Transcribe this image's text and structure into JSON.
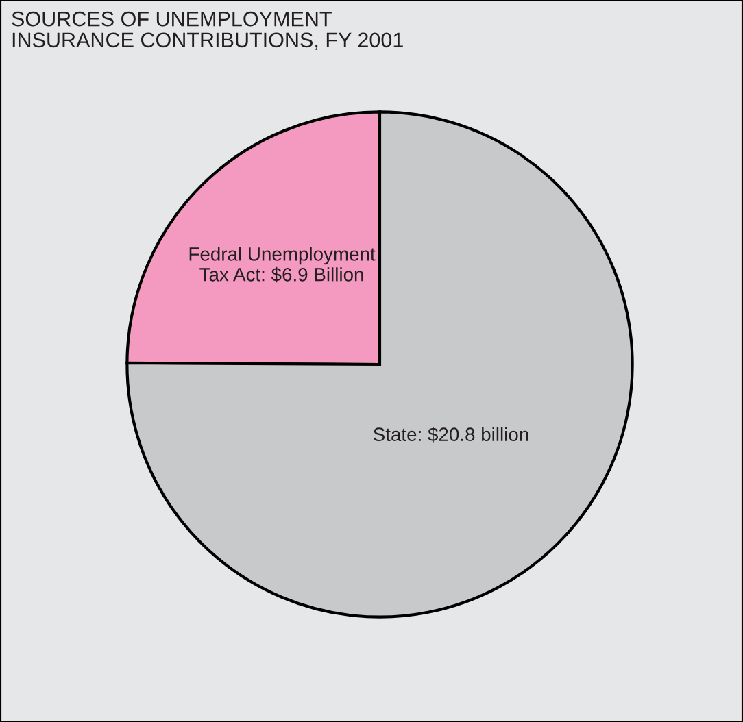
{
  "chart_data": {
    "type": "pie",
    "title": "SOURCES OF UNEMPLOYMENT\nINSURANCE CONTRIBUTIONS, FY 2001",
    "categories": [
      "Fedral Unemployment\nTax Act: $6.9 Billion",
      "State: $20.8 billion"
    ],
    "values": [
      6.9,
      20.8
    ],
    "colors": [
      "#f49ac1",
      "#c8c9cb"
    ]
  }
}
